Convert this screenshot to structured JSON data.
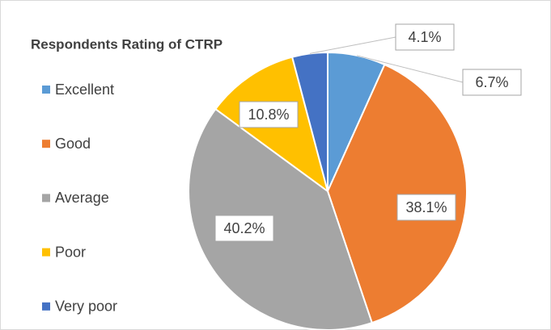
{
  "chart_data": {
    "type": "pie",
    "title": "Respondents Rating of CTRP",
    "categories": [
      "Excellent",
      "Good",
      "Average",
      "Poor",
      "Very poor"
    ],
    "values": [
      6.7,
      38.1,
      40.2,
      10.8,
      4.1
    ],
    "value_labels": [
      "6.7%",
      "38.1%",
      "40.2%",
      "10.8%",
      "4.1%"
    ],
    "colors": [
      "#5b9bd5",
      "#ed7d31",
      "#a5a5a5",
      "#ffc000",
      "#4472c4"
    ],
    "legend": "left"
  }
}
